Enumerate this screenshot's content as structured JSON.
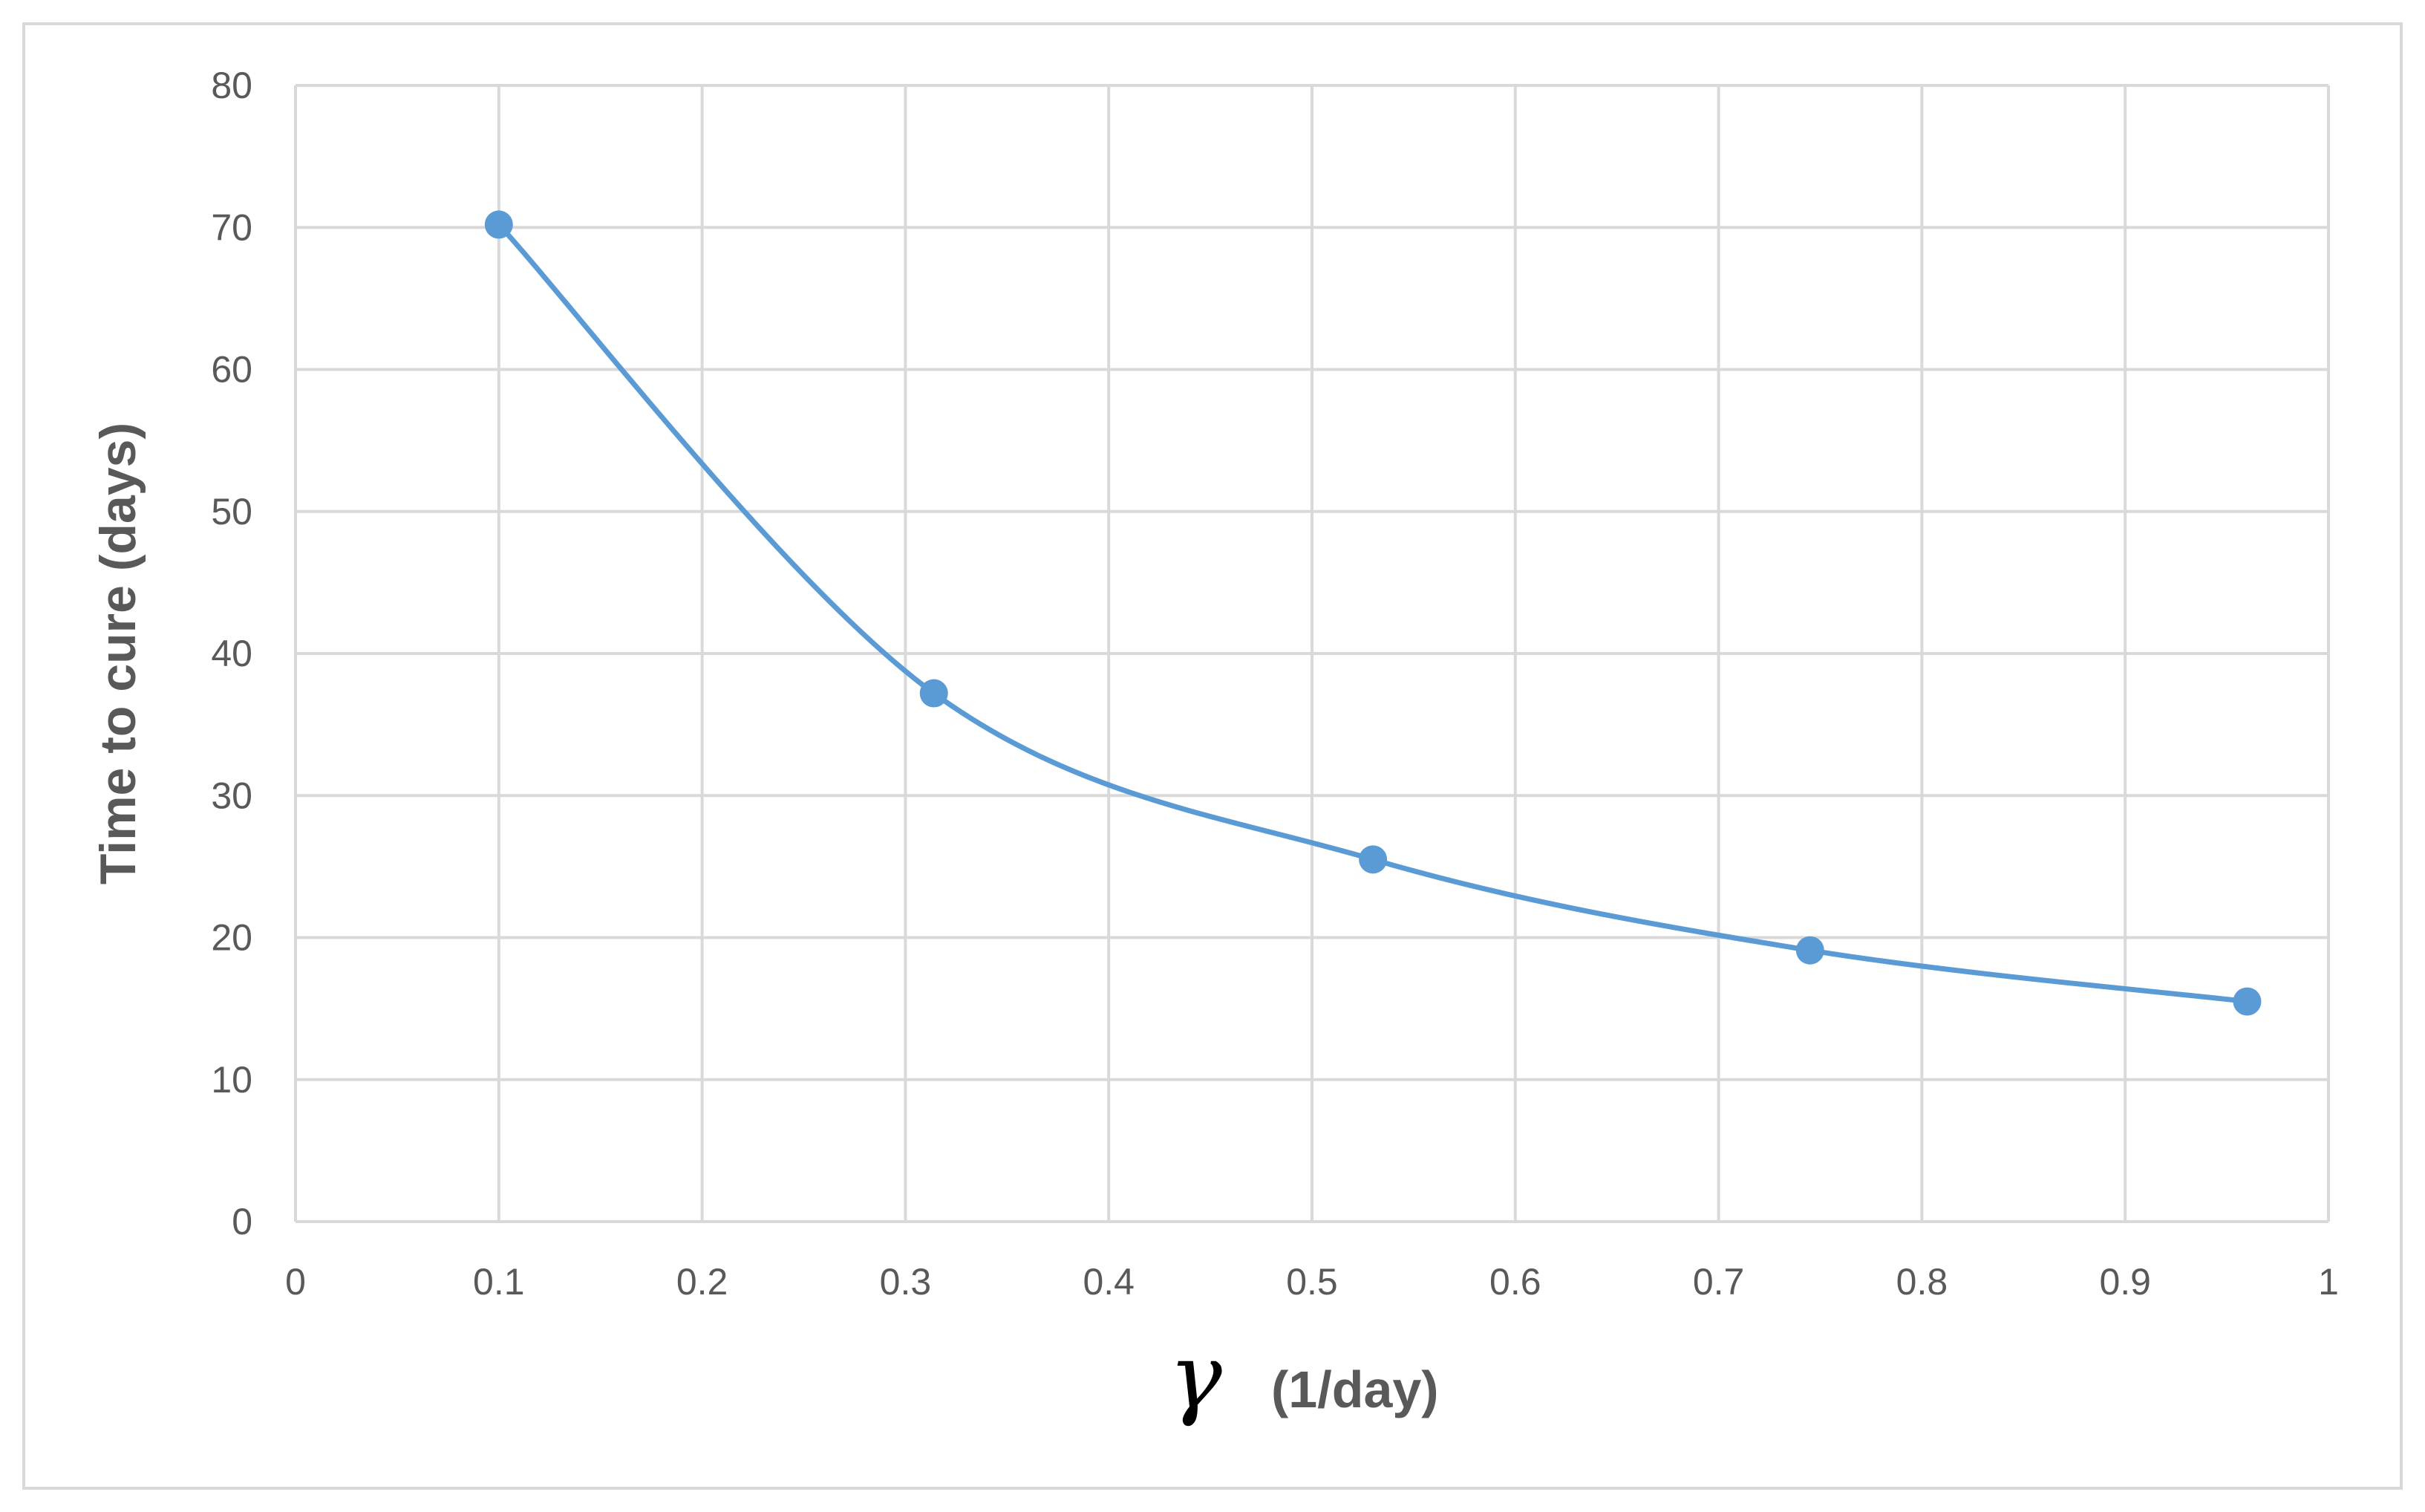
{
  "chart_data": {
    "type": "line",
    "smooth": true,
    "markers": true,
    "x": [
      0.1,
      0.314,
      0.53,
      0.745,
      0.96
    ],
    "series": [
      {
        "values": [
          70.2,
          37.2,
          25.5,
          19.1,
          15.5
        ],
        "color": "#5b9bd5"
      }
    ],
    "xlabel_symbol": "γ",
    "xlabel_unit": "(1/day)",
    "ylabel": "Time to cure (days)",
    "xlim": [
      0,
      1
    ],
    "ylim": [
      0,
      80
    ],
    "xticks": [
      "0",
      "0.1",
      "0.2",
      "0.3",
      "0.4",
      "0.5",
      "0.6",
      "0.7",
      "0.8",
      "0.9",
      "1"
    ],
    "yticks": [
      "0",
      "10",
      "20",
      "30",
      "40",
      "50",
      "60",
      "70",
      "80"
    ],
    "grid": true,
    "legend": "none"
  }
}
